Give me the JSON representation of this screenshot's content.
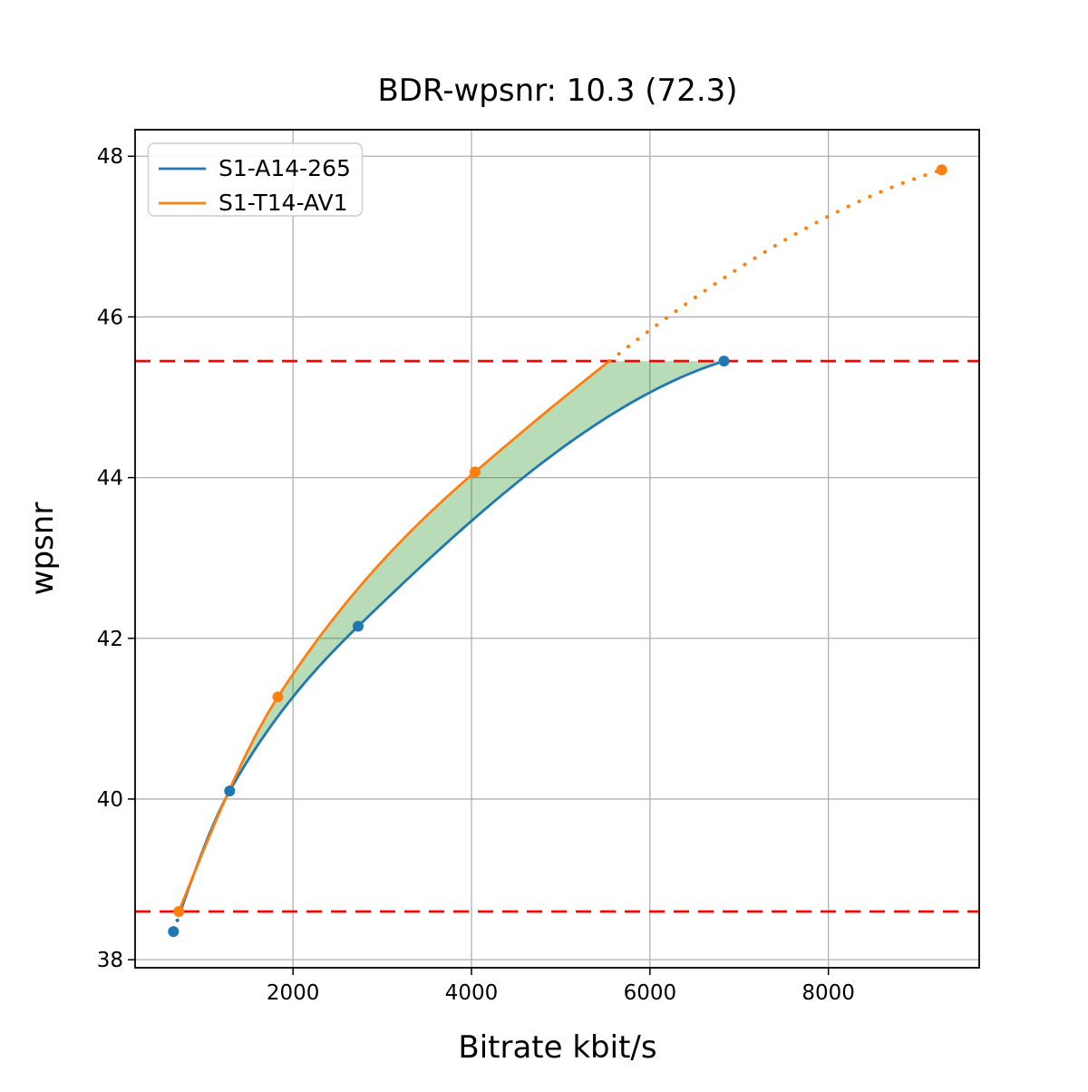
{
  "chart_data": {
    "type": "line",
    "title": "BDR-wpsnr: 10.3 (72.3)",
    "xlabel": "Bitrate kbit/s",
    "ylabel": "wpsnr",
    "xlim": [
      230,
      9690
    ],
    "ylim": [
      37.9,
      48.33
    ],
    "xticks": [
      2000,
      4000,
      6000,
      8000
    ],
    "yticks": [
      38,
      40,
      42,
      44,
      46,
      48
    ],
    "grid": true,
    "grid_color": "#b0b0b0",
    "legend_position": "upper left",
    "series": [
      {
        "name": "S1-A14-265",
        "color": "#1f77b4",
        "points": [
          [
            660,
            38.35
          ],
          [
            1290,
            40.1
          ],
          [
            2730,
            42.15
          ],
          [
            6830,
            45.45
          ]
        ]
      },
      {
        "name": "S1-T14-AV1",
        "color": "#ff7f0e",
        "points": [
          [
            720,
            38.6
          ],
          [
            1830,
            41.27
          ],
          [
            4040,
            44.07
          ],
          [
            9270,
            47.83
          ]
        ]
      }
    ],
    "overlap_band": {
      "low": 38.6,
      "high": 45.45,
      "line_color": "#ff0000",
      "line_style": "dashed",
      "fill_color": "#008000",
      "fill_opacity": 0.28
    }
  }
}
